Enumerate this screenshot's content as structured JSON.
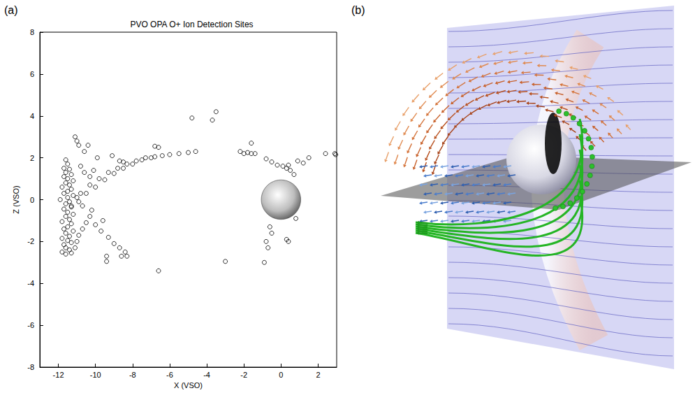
{
  "panel_labels": [
    "(a)",
    "(b)"
  ],
  "chart_data": {
    "type": "scatter",
    "title": "PVO OPA O+ Ion Detection Sites",
    "x_label": "X (VSO)",
    "y_label": "Z (VSO)",
    "color": "#000000",
    "marker": "open_circle",
    "grid": false,
    "xlim": [
      -13,
      3
    ],
    "xticks": [
      -12,
      -10,
      -8,
      -6,
      -4,
      -2,
      0,
      2
    ],
    "ylim": [
      -8,
      8
    ],
    "yticks": [
      -8,
      -6,
      -4,
      -2,
      0,
      2,
      4,
      6,
      8
    ],
    "planet": {
      "x": 0,
      "y": 0,
      "radius": 1
    },
    "x": [
      -11.6,
      -11.5,
      -11.7,
      -11.4,
      -11.6,
      -11.3,
      -11.7,
      -11.5,
      -11.2,
      -11.6,
      -11.4,
      -11.8,
      -11.3,
      -11.5,
      -11.7,
      -11.2,
      -11.5,
      -11.9,
      -11.4,
      -11.6,
      -11.3,
      -11.7,
      -11.5,
      -11.2,
      -11.6,
      -11.4,
      -11.8,
      -11.3,
      -11.5,
      -11.7,
      -11.2,
      -11.6,
      -11.4,
      -11.8,
      -11.5,
      -11.3,
      -11.7,
      -11.6,
      -11.4,
      -11.8,
      -11.6,
      -11.3,
      -11.1,
      -11.0,
      -10.9,
      -10.7,
      -10.5,
      -10.8,
      -10.6,
      -10.3,
      -11.3,
      -10.8,
      -10.3,
      -9.8,
      -9.3,
      -8.8,
      -8.3,
      -7.8,
      -7.3,
      -6.8,
      -6.4,
      -6.0,
      -5.5,
      -5.0,
      -4.6,
      -10.9,
      -10.5,
      -10.0,
      -9.5,
      -9.0,
      -8.5,
      -8.0,
      -7.5,
      -7.0,
      -6.6,
      -6.8,
      -11.0,
      -10.7,
      -10.3,
      -10.0,
      -9.7,
      -9.3,
      -9.0,
      -8.7,
      -8.4,
      -8.3,
      -8.6,
      -9.4,
      -9.4,
      -11.1,
      -11.0,
      -10.9,
      -10.6,
      -10.4,
      -9.9,
      -9.1,
      -8.7,
      -8.5,
      -6.6,
      -4.8,
      -3.7,
      -3.5,
      -3.0,
      -2.2,
      -2.0,
      -1.8,
      -1.6,
      -1.4,
      -1.6,
      -0.8,
      -0.5,
      -0.2,
      0.1,
      0.3,
      0.5,
      0.7,
      0.4,
      0.9,
      1.2,
      1.5,
      2.4,
      2.9,
      2.95,
      -0.6,
      -0.5,
      -0.8,
      -0.7,
      0.3,
      0.4,
      -0.9,
      0.8,
      -10.2,
      -10.1,
      -9.6
    ],
    "values": [
      1.9,
      1.7,
      1.5,
      1.45,
      1.3,
      1.2,
      1.1,
      1.0,
      0.9,
      0.8,
      0.7,
      0.6,
      0.5,
      0.4,
      0.3,
      0.2,
      0.1,
      0.0,
      -0.1,
      -0.2,
      -0.35,
      -0.45,
      -0.6,
      -0.7,
      -0.8,
      -0.95,
      -1.05,
      -1.15,
      -1.3,
      -1.4,
      -1.5,
      -1.6,
      -1.75,
      -1.85,
      -1.95,
      -2.05,
      -2.15,
      -2.3,
      -2.4,
      -2.5,
      -2.6,
      -2.55,
      -2.3,
      -2.0,
      -1.7,
      -1.4,
      -1.1,
      1.6,
      1.3,
      1.1,
      -0.3,
      0.3,
      0.7,
      1.0,
      1.3,
      1.5,
      1.7,
      1.85,
      2.0,
      2.05,
      2.1,
      2.15,
      2.2,
      2.25,
      2.3,
      -0.1,
      0.3,
      0.6,
      0.95,
      1.25,
      1.5,
      1.7,
      1.9,
      2.0,
      2.5,
      2.55,
      0.1,
      -0.3,
      -0.8,
      -1.2,
      -1.5,
      -1.8,
      -2.1,
      -2.3,
      -2.5,
      -2.7,
      -2.7,
      -2.7,
      -2.95,
      3.0,
      2.8,
      2.6,
      2.3,
      2.6,
      2.0,
      2.1,
      1.85,
      1.8,
      -3.4,
      3.9,
      3.8,
      4.2,
      -2.95,
      2.3,
      2.2,
      2.25,
      2.2,
      2.2,
      2.7,
      1.95,
      1.8,
      1.65,
      1.6,
      1.5,
      1.4,
      1.2,
      1.65,
      1.85,
      1.75,
      2.0,
      2.2,
      2.2,
      2.15,
      -1.3,
      -1.6,
      -2.0,
      -2.3,
      -1.9,
      -2.0,
      -3.0,
      -0.9,
      -0.5,
      1.4,
      -1.0
    ]
  }
}
